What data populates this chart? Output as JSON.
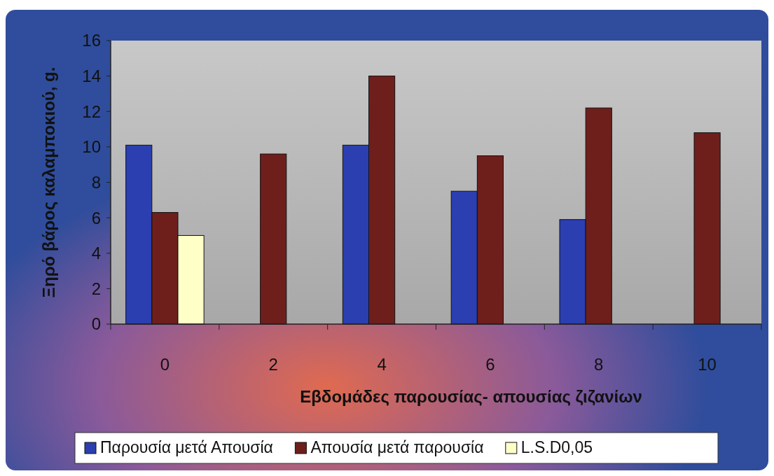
{
  "chart_data": {
    "type": "bar",
    "xlabel": "Εβδομάδες παρουσίας- απουσίας ζιζανίων",
    "ylabel": "Ξηρό βάρος καλαμποκιού, g.",
    "categories": [
      "0",
      "2",
      "4",
      "6",
      "8",
      "10"
    ],
    "series": [
      {
        "name": "Παρουσία μετά Απουσία",
        "color": "#2b3fb0",
        "values": [
          10.1,
          null,
          10.1,
          7.5,
          5.9,
          null
        ]
      },
      {
        "name": "Απουσία μετά παρουσία",
        "color": "#6e1f1c",
        "values": [
          6.3,
          9.6,
          14,
          9.5,
          12.2,
          10.8
        ]
      },
      {
        "name": "L.S.D0,05",
        "color": "#ffffc8",
        "values": [
          5.0,
          null,
          null,
          null,
          null,
          null
        ]
      }
    ],
    "ylim": [
      0,
      16
    ],
    "yticks": [
      0,
      2,
      4,
      6,
      8,
      10,
      12,
      14,
      16
    ],
    "grid": false,
    "legend": "bottom"
  }
}
